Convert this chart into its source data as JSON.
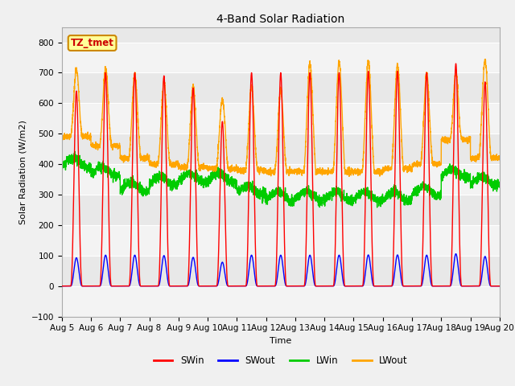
{
  "title": "4-Band Solar Radiation",
  "xlabel": "Time",
  "ylabel": "Solar Radiation (W/m2)",
  "ylim": [
    -100,
    850
  ],
  "yticks": [
    -100,
    0,
    100,
    200,
    300,
    400,
    500,
    600,
    700,
    800
  ],
  "background_color": "#f0f0f0",
  "plot_bg_color": "#e8e8e8",
  "legend_label": "TZ_tmet",
  "series": {
    "SWin": {
      "color": "#ff0000",
      "lw": 1.0
    },
    "SWout": {
      "color": "#0000ff",
      "lw": 1.0
    },
    "LWin": {
      "color": "#00cc00",
      "lw": 1.0
    },
    "LWout": {
      "color": "#ffa500",
      "lw": 1.0
    }
  },
  "n_days": 15,
  "start_day": 5,
  "ppd": 288
}
